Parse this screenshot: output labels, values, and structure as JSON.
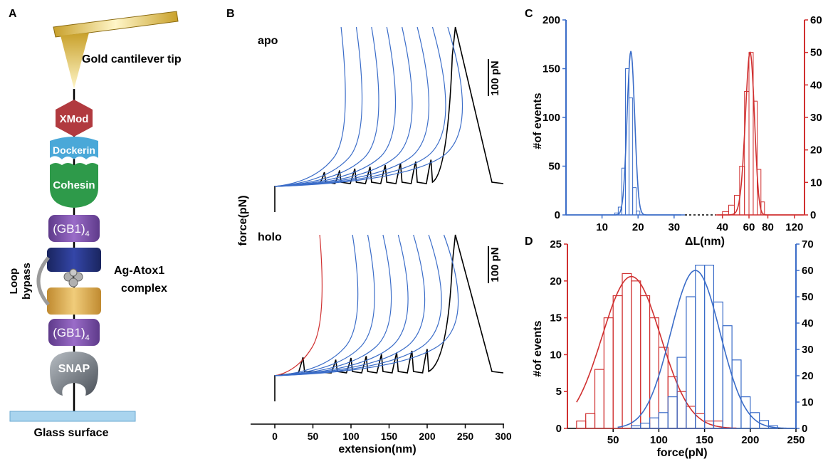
{
  "panel_a": {
    "letter": "A",
    "tip_label": "Gold cantilever tip",
    "xmod": "XMod",
    "dockerin": "Dockerin",
    "cohesin": "Cohesin",
    "gb1_top": "(GB1)",
    "gb1_top_sub": "4",
    "loop_line1": "Loop",
    "loop_line2": "bypass",
    "complex_line1": "Ag-Atox1",
    "complex_line2": "complex",
    "gb1_bottom": "(GB1)",
    "gb1_bottom_sub": "4",
    "snap": "SNAP",
    "glass": "Glass surface",
    "colors": {
      "xmod": "#b13a3f",
      "dockerin": "#4aa8d8",
      "cohesin": "#2e9a4a",
      "gb1": "#7b4fa8",
      "atox_top": "#25357f",
      "atox_bottom": "#d9a84a",
      "snap": "#707880",
      "glass": "#a9d4ee",
      "tip": "#c8a02a"
    }
  },
  "panel_b": {
    "letter": "B",
    "label_apo": "apo",
    "label_holo": "holo",
    "ylabel": "force(pN)",
    "scale_bar_apo": "100 pN",
    "scale_bar_holo": "100 pN"
  },
  "panel_c": {
    "letter": "C"
  },
  "panel_d": {
    "letter": "D"
  },
  "chart_data": [
    {
      "panel": "B",
      "type": "line",
      "xlabel": "extension(nm)",
      "xlim": [
        -30,
        300
      ],
      "xticks": [
        "0",
        "50",
        "100",
        "150",
        "200",
        "250",
        "300"
      ],
      "series": [
        {
          "name": "apo",
          "unfolding_peak_extensions_nm": [
            65,
            85,
            105,
            125,
            145,
            165,
            185,
            205
          ],
          "detach_extension_nm": 237
        },
        {
          "name": "holo",
          "unfolding_peak_extensions_nm": [
            37,
            80,
            100,
            120,
            140,
            160,
            180,
            200
          ],
          "detach_extension_nm": 237
        }
      ],
      "colors": {
        "trace": "#000000",
        "wlc": "#3a6cc8",
        "wlc_first_holo": "#d03030"
      }
    },
    {
      "panel": "C",
      "type": "bar",
      "xlabel": "ΔL(nm)",
      "ylabel": "#of events",
      "xticks_left": [
        "10",
        "20",
        "30"
      ],
      "xticks_right": [
        "40",
        "60",
        "80",
        "120"
      ],
      "yticks_left": [
        "0",
        "50",
        "100",
        "150",
        "200"
      ],
      "yticks_right": [
        "0",
        "10",
        "20",
        "30",
        "40",
        "50",
        "60"
      ],
      "ylim_left": [
        0,
        200
      ],
      "ylim_right": [
        0,
        60
      ],
      "series": [
        {
          "color": "#3a6cc8",
          "axis": "left",
          "bins": [
            14,
            15,
            16,
            17,
            18,
            19,
            20
          ],
          "values": [
            2,
            8,
            48,
            150,
            120,
            28,
            4
          ],
          "fit_peak": 18,
          "fit_height": 168
        },
        {
          "color": "#d03030",
          "axis": "right",
          "bins": [
            42,
            46,
            50,
            54,
            58,
            62,
            66,
            70,
            74
          ],
          "values": [
            1,
            3,
            6,
            15,
            38,
            50,
            35,
            14,
            4
          ],
          "fit_peak": 61,
          "fit_height": 50
        }
      ],
      "colors": {
        "left_axis": "#3a6cc8",
        "right_axis": "#d03030"
      }
    },
    {
      "panel": "D",
      "type": "bar",
      "xlabel": "force(pN)",
      "ylabel": "#of events",
      "xlim": [
        0,
        250
      ],
      "xticks": [
        "50",
        "100",
        "150",
        "200",
        "250"
      ],
      "yticks_left": [
        "0",
        "5",
        "10",
        "15",
        "20",
        "25"
      ],
      "yticks_right": [
        "0",
        "10",
        "20",
        "30",
        "40",
        "50",
        "60",
        "70"
      ],
      "ylim_left": [
        0,
        25
      ],
      "ylim_right": [
        0,
        70
      ],
      "series": [
        {
          "color": "#d03030",
          "axis": "left",
          "bin_starts": [
            10,
            20,
            30,
            40,
            50,
            60,
            70,
            80,
            90,
            100,
            110,
            120,
            130,
            140,
            150,
            160
          ],
          "values": [
            1,
            2,
            8,
            15,
            18,
            21,
            20,
            18,
            15,
            11,
            7,
            5,
            3,
            2,
            1,
            1
          ],
          "fit_peak": 70,
          "fit_sigma": 32,
          "fit_height": 20.6
        },
        {
          "color": "#3a6cc8",
          "axis": "right",
          "bin_starts": [
            70,
            80,
            90,
            100,
            110,
            120,
            130,
            140,
            150,
            160,
            170,
            180,
            190,
            200,
            210,
            220
          ],
          "values": [
            1,
            2,
            4,
            6,
            12,
            27,
            50,
            62,
            62,
            48,
            39,
            26,
            12,
            6,
            3,
            1
          ],
          "fit_peak": 140,
          "fit_sigma": 27,
          "fit_height": 60
        }
      ],
      "colors": {
        "left_axis": "#d03030",
        "right_axis": "#3a6cc8"
      }
    }
  ]
}
